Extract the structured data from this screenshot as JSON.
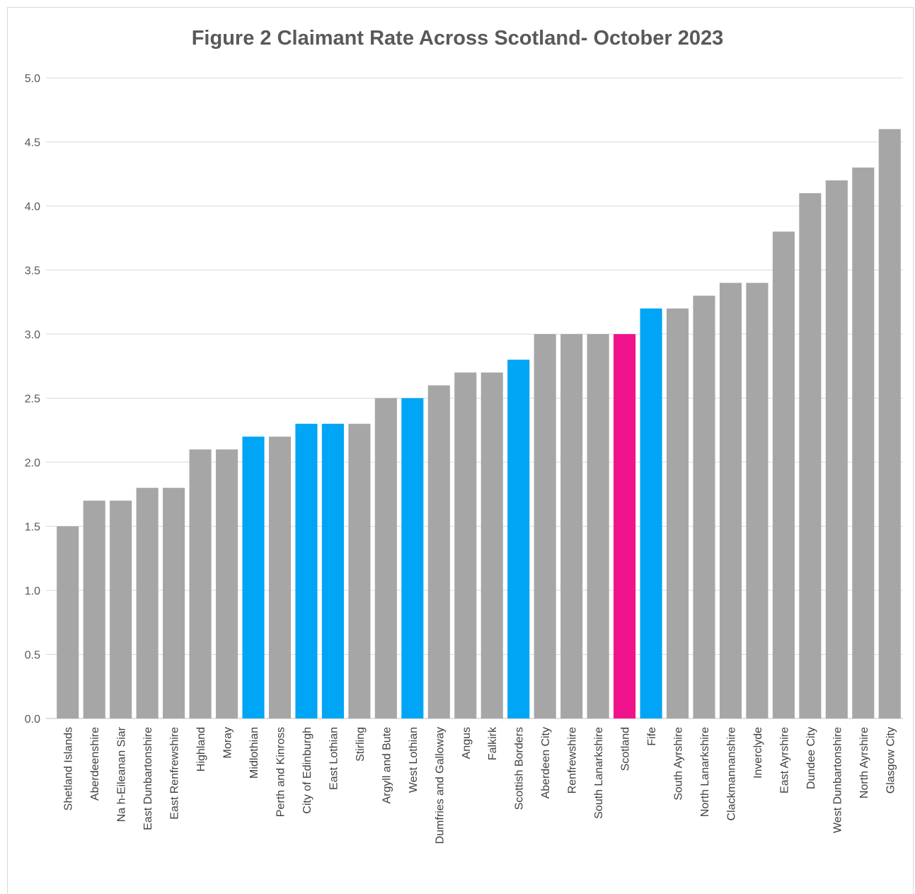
{
  "chart_data": {
    "type": "bar",
    "title": "Figure 2 Claimant Rate Across Scotland- October 2023",
    "xlabel": "",
    "ylabel": "",
    "ylim": [
      0,
      5
    ],
    "yticks": [
      "0.0",
      "0.5",
      "1.0",
      "1.5",
      "2.0",
      "2.5",
      "3.0",
      "3.5",
      "4.0",
      "4.5",
      "5.0"
    ],
    "grid": true,
    "categories": [
      "Shetland Islands",
      "Aberdeenshire",
      "Na h-Eileanan Siar",
      "East Dunbartonshire",
      "East Renfrewshire",
      "Highland",
      "Moray",
      "Midlothian",
      "Perth and Kinross",
      "City of Edinburgh",
      "East Lothian",
      "Stirling",
      "Argyll and Bute",
      "West Lothian",
      "Dumfries and Galloway",
      "Angus",
      "Falkirk",
      "Scottish Borders",
      "Aberdeen City",
      "Renfrewshire",
      "South Lanarkshire",
      "Scotland",
      "Fife",
      "South Ayrshire",
      "North Lanarkshire",
      "Clackmannanshire",
      "Inverclyde",
      "East Ayrshire",
      "Dundee City",
      "West Dunbartonshire",
      "North Ayrshire",
      "Glasgow City"
    ],
    "values": [
      1.5,
      1.7,
      1.7,
      1.8,
      1.8,
      2.1,
      2.1,
      2.2,
      2.2,
      2.3,
      2.3,
      2.3,
      2.5,
      2.5,
      2.6,
      2.7,
      2.7,
      2.8,
      3.0,
      3.0,
      3.0,
      3.0,
      3.2,
      3.2,
      3.3,
      3.4,
      3.4,
      3.8,
      4.1,
      4.2,
      4.3,
      4.6
    ],
    "bar_colors": [
      "#a6a6a6",
      "#a6a6a6",
      "#a6a6a6",
      "#a6a6a6",
      "#a6a6a6",
      "#a6a6a6",
      "#a6a6a6",
      "#00a5f5",
      "#a6a6a6",
      "#00a5f5",
      "#00a5f5",
      "#a6a6a6",
      "#a6a6a6",
      "#00a5f5",
      "#a6a6a6",
      "#a6a6a6",
      "#a6a6a6",
      "#00a5f5",
      "#a6a6a6",
      "#a6a6a6",
      "#a6a6a6",
      "#f0148c",
      "#00a5f5",
      "#a6a6a6",
      "#a6a6a6",
      "#a6a6a6",
      "#a6a6a6",
      "#a6a6a6",
      "#a6a6a6",
      "#a6a6a6",
      "#a6a6a6",
      "#a6a6a6"
    ]
  }
}
